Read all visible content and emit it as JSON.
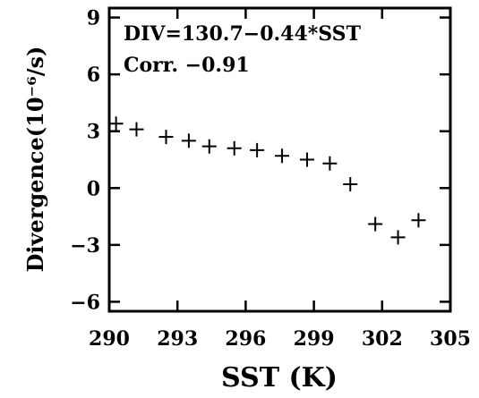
{
  "chart_data": {
    "type": "scatter",
    "marker": "plus",
    "xlabel": "SST (K)",
    "ylabel": "Divergence(10⁻⁶/s)",
    "xlim": [
      290,
      305
    ],
    "ylim": [
      -6.5,
      9.5
    ],
    "x_ticks": [
      290,
      293,
      296,
      299,
      302,
      305
    ],
    "y_ticks": [
      -6,
      -3,
      0,
      3,
      6,
      9
    ],
    "annotations": [
      "DIV=130.7−0.44*SST",
      "Corr. −0.91"
    ],
    "annotation_placement": "top-left",
    "grid": false,
    "x": [
      290.3,
      291.2,
      292.5,
      293.5,
      294.4,
      295.5,
      296.5,
      297.6,
      298.7,
      299.7,
      300.6,
      301.7,
      302.7,
      303.6
    ],
    "y": [
      3.4,
      3.1,
      2.7,
      2.5,
      2.2,
      2.1,
      2.0,
      1.7,
      1.5,
      1.3,
      0.2,
      -1.9,
      -2.6,
      -1.7
    ],
    "colors": {
      "axis": "#000000",
      "marker": "#000000",
      "background": "#ffffff"
    }
  }
}
